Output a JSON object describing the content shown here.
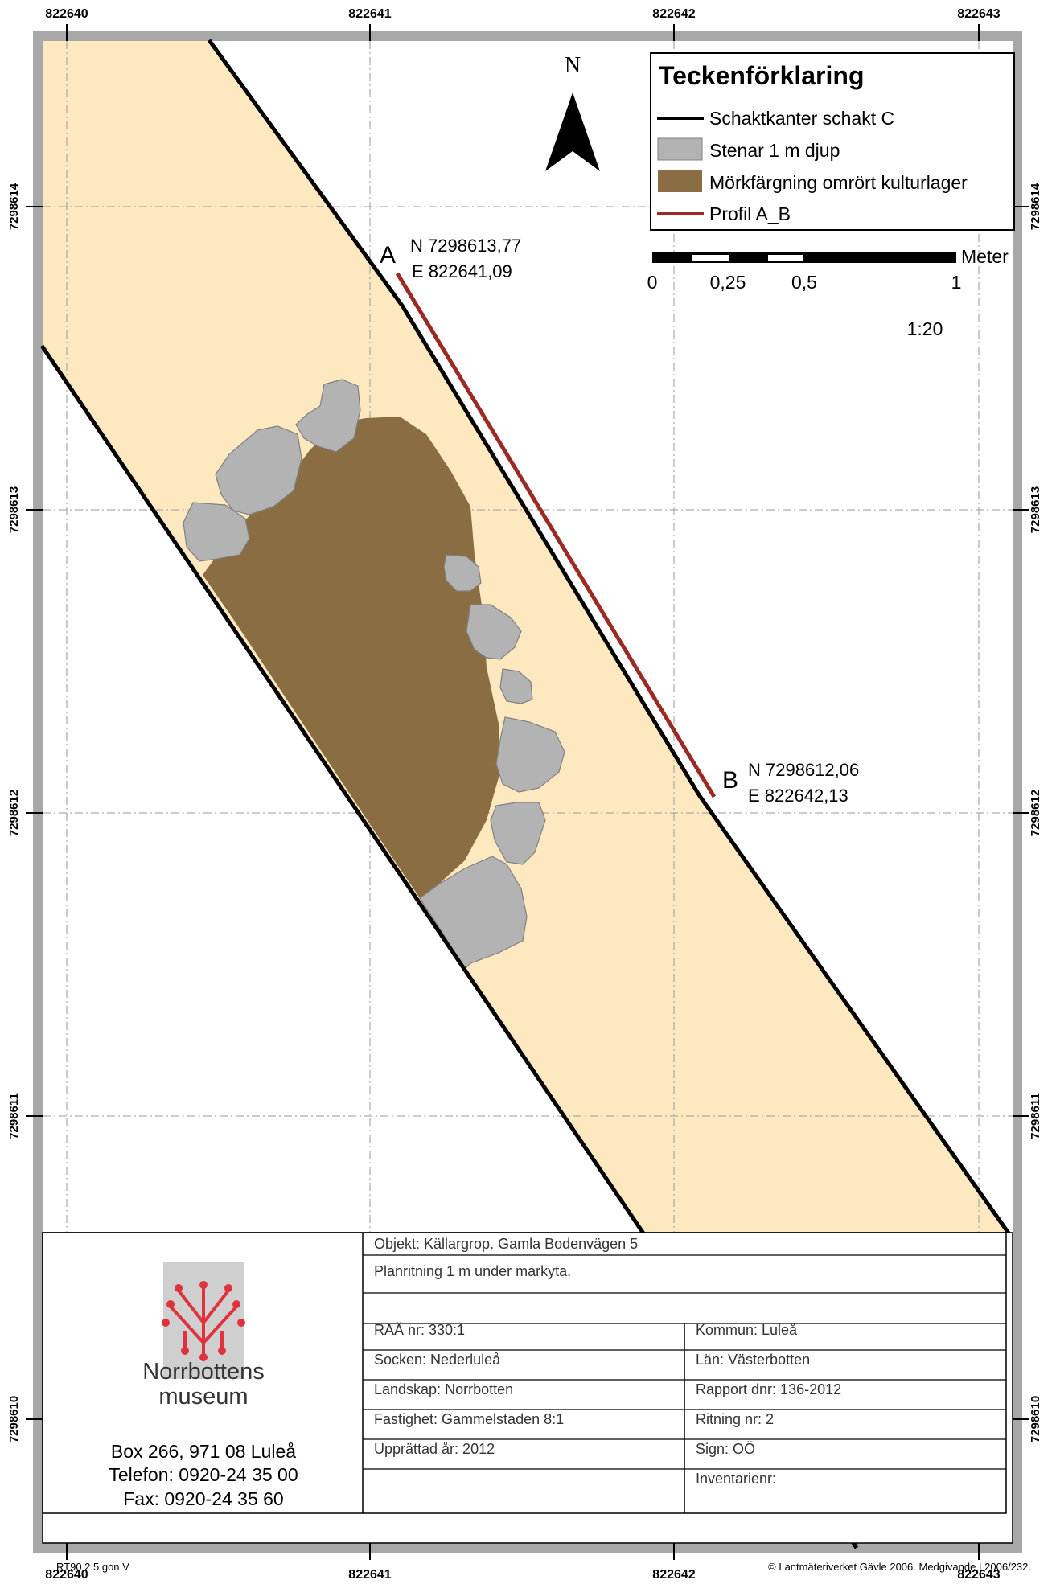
{
  "grid": {
    "top_labels": [
      "822640",
      "822641",
      "822642",
      "822643"
    ],
    "bottom_labels": [
      "822640",
      "822641",
      "822642",
      "822643"
    ],
    "left_labels": [
      "7298614",
      "7298613",
      "7298612",
      "7298611",
      "7298610"
    ],
    "right_labels": [
      "7298614",
      "7298613",
      "7298612",
      "7298611",
      "7298610"
    ]
  },
  "north_arrow": {
    "label": "N"
  },
  "legend": {
    "title": "Teckenförklaring",
    "items": [
      {
        "label": "Schaktkanter schakt C",
        "symbol": "line",
        "color": "#000000"
      },
      {
        "label": "Stenar 1 m djup",
        "symbol": "box",
        "color": "#b3b3b3"
      },
      {
        "label": "Mörkfärgning omrört kulturlager",
        "symbol": "box",
        "color": "#8b6d43"
      },
      {
        "label": "Profil A_B",
        "symbol": "line",
        "color": "#9b2a24"
      }
    ]
  },
  "scale_bar": {
    "unit": "Meter",
    "labels": [
      "0",
      "0,25",
      "0,5",
      "1"
    ],
    "ratio": "1:20"
  },
  "profile_points": {
    "a": {
      "letter": "A",
      "north": "N 7298613,77",
      "east": "E 822641,09"
    },
    "b": {
      "letter": "B",
      "north": "N 7298612,06",
      "east": "E 822642,13"
    }
  },
  "title_block": {
    "objekt": "Objekt:  Källargrop. Gamla Bodenvägen 5",
    "plan": "Planritning 1 m under markyta.",
    "left_rows": [
      "RAÄ nr: 330:1",
      "Socken: Nederluleå",
      "Landskap: Norrbotten",
      "Fastighet: Gammelstaden 8:1",
      "Upprättad år: 2012",
      ""
    ],
    "right_rows": [
      "Kommun: Luleå",
      "Län: Västerbotten",
      "Rapport dnr: 136-2012",
      "Ritning nr: 2",
      "Sign: OÖ",
      "Inventarienr:"
    ]
  },
  "museum": {
    "name_line1": "Norrbottens",
    "name_line2": "museum",
    "address": "Box 266, 971 08 Luleå",
    "phone": "Telefon: 0920-24 35 00",
    "fax": "Fax: 0920-24 35 60",
    "logo_color": "#e0323c"
  },
  "footer": {
    "projection": "RT90 2.5 gon V",
    "copyright": "© Lantmäteriverket Gävle 2006. Medgivande I 2006/232."
  },
  "colors": {
    "trench_fill": "#fde8c0",
    "frame": "#a8a8a8",
    "stone": "#b3b3b3",
    "dark_layer": "#8b6d43",
    "profile_line": "#9b2a24"
  }
}
